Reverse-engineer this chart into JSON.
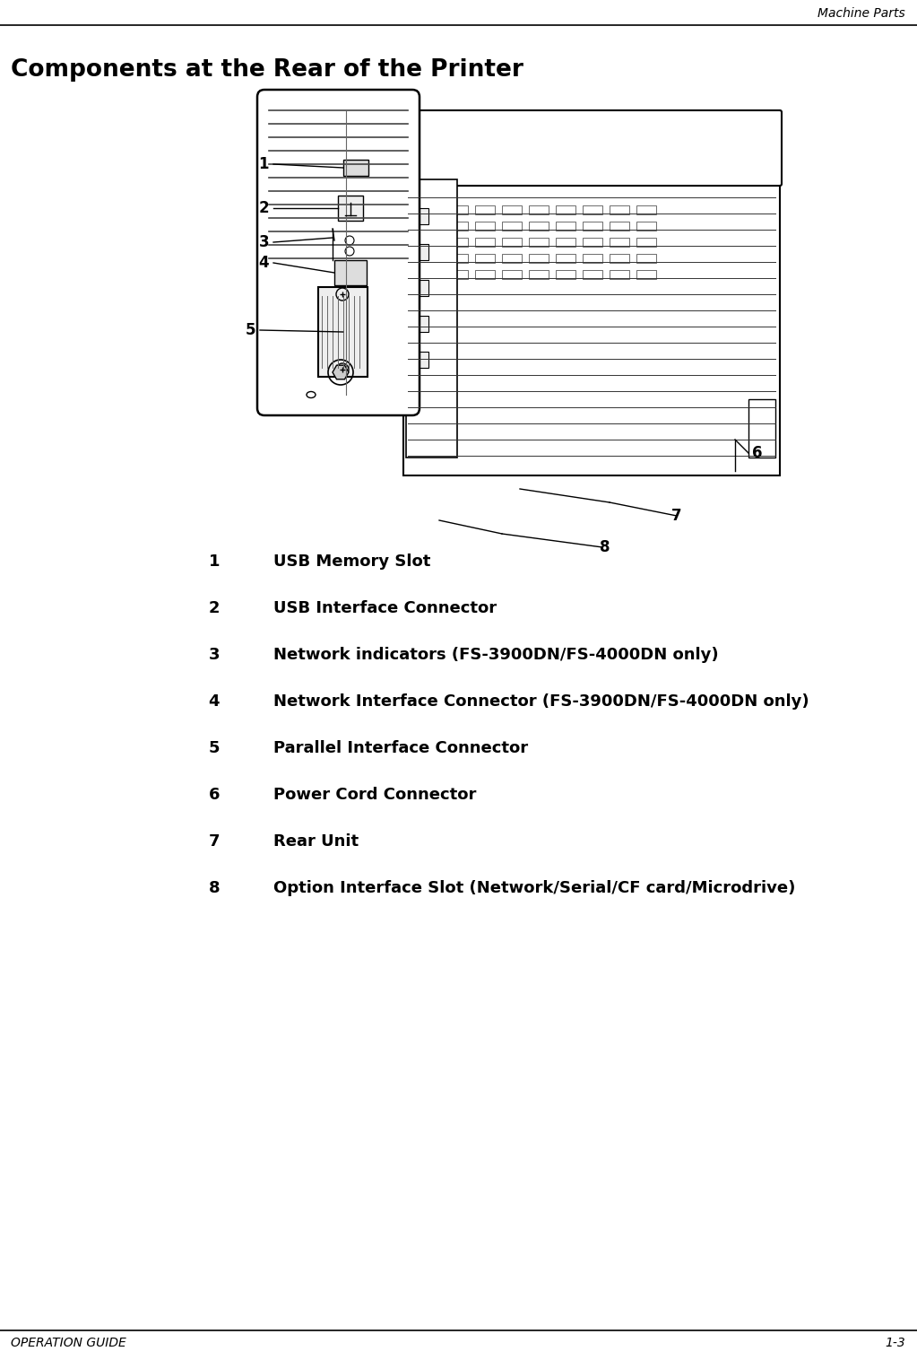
{
  "header_text": "Machine Parts",
  "title": "Components at the Rear of the Printer",
  "footer_left": "OPERATION GUIDE",
  "footer_right": "1-3",
  "items": [
    {
      "num": "1",
      "desc": "USB Memory Slot"
    },
    {
      "num": "2",
      "desc": "USB Interface Connector"
    },
    {
      "num": "3",
      "desc": "Network indicators (FS-3900DN/FS-4000DN only)"
    },
    {
      "num": "4",
      "desc": "Network Interface Connector (FS-3900DN/FS-4000DN only)"
    },
    {
      "num": "5",
      "desc": "Parallel Interface Connector"
    },
    {
      "num": "6",
      "desc": "Power Cord Connector"
    },
    {
      "num": "7",
      "desc": "Rear Unit"
    },
    {
      "num": "8",
      "desc": "Option Interface Slot (Network/Serial/CF card/Microdrive)"
    }
  ],
  "bg_color": "#ffffff",
  "text_color": "#000000"
}
